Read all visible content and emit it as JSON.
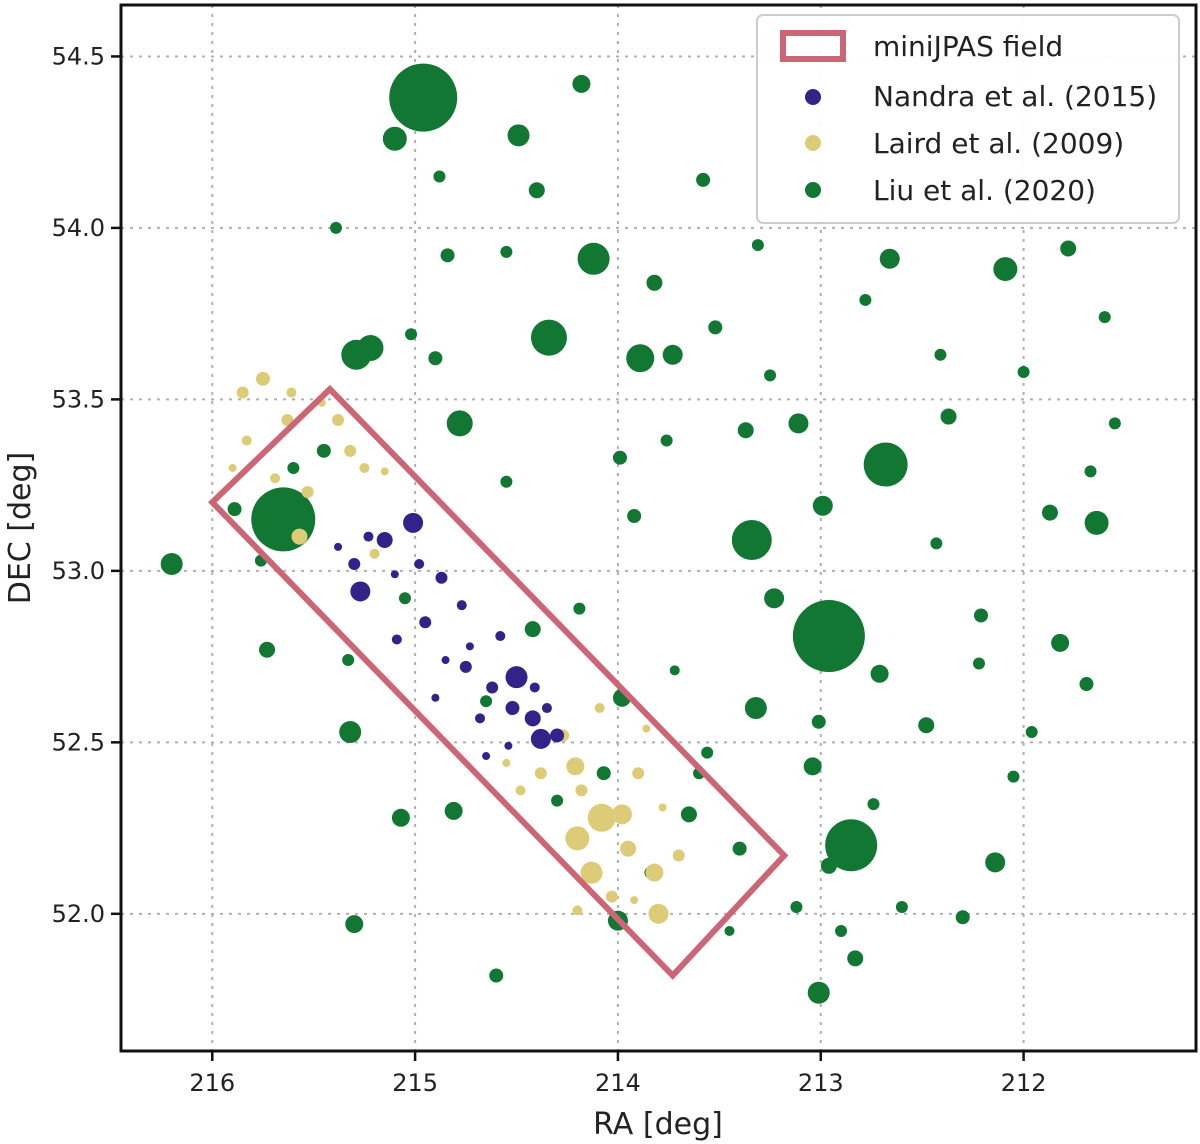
{
  "chart_data": {
    "type": "scatter",
    "xlabel": "RA [deg]",
    "ylabel": "DEC [deg]",
    "xlim": [
      216.45,
      211.15
    ],
    "ylim": [
      51.6,
      54.65
    ],
    "x_ticks": [
      "216",
      "215",
      "214",
      "213",
      "212"
    ],
    "x_tick_values": [
      216,
      215,
      214,
      213,
      212
    ],
    "y_ticks": [
      "52.0",
      "52.5",
      "53.0",
      "53.5",
      "54.0",
      "54.5"
    ],
    "y_tick_values": [
      52.0,
      52.5,
      53.0,
      53.5,
      54.0,
      54.5
    ],
    "grid": true,
    "legend_position": "top-right",
    "legend": [
      {
        "label": "miniJPAS field",
        "kind": "rect",
        "color": "#cc6677"
      },
      {
        "label": "Nandra et al. (2015)",
        "kind": "dot",
        "color": "#332288"
      },
      {
        "label": "Laird et al. (2009)",
        "kind": "dot",
        "color": "#ddcc77"
      },
      {
        "label": "Liu et al. (2020)",
        "kind": "dot",
        "color": "#117733"
      }
    ],
    "field_polygon": [
      [
        216.0,
        53.2
      ],
      [
        215.42,
        53.53
      ],
      [
        213.18,
        52.17
      ],
      [
        213.73,
        51.82
      ]
    ],
    "series": [
      {
        "name": "Liu et al. (2020)",
        "color": "#117733",
        "points": [
          [
            214.96,
            54.38,
            34
          ],
          [
            212.96,
            52.81,
            36
          ],
          [
            215.65,
            53.15,
            32
          ],
          [
            212.68,
            53.31,
            22
          ],
          [
            212.85,
            52.2,
            26
          ],
          [
            213.34,
            53.09,
            20
          ],
          [
            214.34,
            53.68,
            18
          ],
          [
            214.12,
            53.91,
            16
          ],
          [
            215.29,
            53.63,
            15
          ],
          [
            213.89,
            53.62,
            14
          ],
          [
            211.64,
            53.14,
            12
          ],
          [
            216.2,
            53.02,
            11
          ],
          [
            215.22,
            53.65,
            13
          ],
          [
            215.1,
            54.26,
            12
          ],
          [
            214.49,
            54.27,
            11
          ],
          [
            212.09,
            53.88,
            12
          ],
          [
            214.78,
            53.43,
            13
          ],
          [
            213.11,
            53.43,
            10
          ],
          [
            213.98,
            52.63,
            9
          ],
          [
            213.32,
            52.6,
            11
          ],
          [
            212.66,
            53.91,
            10
          ],
          [
            213.73,
            53.63,
            10
          ],
          [
            212.14,
            52.15,
            10
          ],
          [
            213.23,
            52.92,
            10
          ],
          [
            215.32,
            52.53,
            11
          ],
          [
            213.01,
            51.77,
            11
          ],
          [
            212.99,
            53.19,
            10
          ],
          [
            215.3,
            51.97,
            9
          ],
          [
            214.81,
            52.3,
            9
          ],
          [
            211.78,
            53.94,
            8
          ],
          [
            213.37,
            53.41,
            8
          ],
          [
            212.83,
            51.87,
            8
          ],
          [
            213.04,
            52.43,
            9
          ],
          [
            212.71,
            52.7,
            9
          ],
          [
            211.82,
            52.79,
            9
          ],
          [
            215.07,
            52.28,
            9
          ],
          [
            214.42,
            52.83,
            8
          ],
          [
            213.82,
            53.84,
            8
          ],
          [
            214.18,
            54.42,
            9
          ],
          [
            213.65,
            52.29,
            8
          ],
          [
            215.89,
            53.18,
            7
          ],
          [
            214.0,
            51.98,
            10
          ],
          [
            214.4,
            54.11,
            8
          ],
          [
            213.58,
            54.14,
            7
          ],
          [
            212.48,
            52.55,
            8
          ],
          [
            211.69,
            52.67,
            7
          ],
          [
            212.37,
            53.45,
            8
          ],
          [
            212.96,
            52.14,
            8
          ],
          [
            211.87,
            53.17,
            8
          ],
          [
            212.21,
            52.87,
            7
          ],
          [
            214.6,
            51.82,
            7
          ],
          [
            213.4,
            52.19,
            7
          ],
          [
            212.3,
            51.99,
            7
          ],
          [
            213.01,
            52.56,
            7
          ],
          [
            214.84,
            53.92,
            7
          ],
          [
            213.99,
            53.33,
            7
          ],
          [
            215.73,
            52.77,
            8
          ],
          [
            214.07,
            52.41,
            7
          ],
          [
            215.45,
            53.35,
            7
          ],
          [
            213.92,
            53.16,
            7
          ],
          [
            213.12,
            52.02,
            6
          ],
          [
            214.55,
            53.93,
            6
          ],
          [
            212.22,
            52.73,
            6
          ],
          [
            213.52,
            53.71,
            7
          ],
          [
            211.67,
            53.29,
            6
          ],
          [
            212.78,
            53.79,
            6
          ],
          [
            214.9,
            53.62,
            7
          ],
          [
            215.05,
            52.92,
            6
          ],
          [
            213.6,
            52.41,
            6
          ],
          [
            215.6,
            53.3,
            6
          ],
          [
            212.6,
            52.02,
            6
          ],
          [
            214.3,
            52.33,
            6
          ],
          [
            212.9,
            51.95,
            6
          ],
          [
            213.25,
            53.57,
            6
          ],
          [
            215.02,
            53.69,
            6
          ],
          [
            213.76,
            53.38,
            6
          ],
          [
            212.05,
            52.4,
            6
          ],
          [
            214.65,
            52.62,
            6
          ],
          [
            213.56,
            52.47,
            6
          ],
          [
            212.43,
            53.08,
            6
          ],
          [
            211.96,
            52.53,
            6
          ],
          [
            214.19,
            52.89,
            6
          ],
          [
            215.33,
            52.74,
            6
          ],
          [
            212.74,
            52.32,
            6
          ],
          [
            211.55,
            53.43,
            6
          ],
          [
            213.84,
            52.12,
            6
          ],
          [
            215.76,
            53.03,
            6
          ],
          [
            214.55,
            53.26,
            6
          ],
          [
            212.41,
            53.63,
            6
          ],
          [
            213.31,
            53.95,
            6
          ],
          [
            215.39,
            54.0,
            6
          ],
          [
            214.88,
            54.15,
            6
          ],
          [
            212.0,
            53.58,
            6
          ],
          [
            211.6,
            53.74,
            6
          ],
          [
            213.45,
            51.95,
            5
          ],
          [
            213.72,
            52.71,
            5
          ]
        ]
      },
      {
        "name": "Laird et al. (2009)",
        "color": "#ddcc77",
        "points": [
          [
            214.08,
            52.28,
            14
          ],
          [
            214.2,
            52.22,
            12
          ],
          [
            213.98,
            52.29,
            10
          ],
          [
            214.13,
            52.12,
            11
          ],
          [
            214.21,
            52.43,
            9
          ],
          [
            213.8,
            52.0,
            10
          ],
          [
            213.82,
            52.12,
            9
          ],
          [
            213.95,
            52.19,
            8
          ],
          [
            215.57,
            53.1,
            8
          ],
          [
            215.75,
            53.56,
            7
          ],
          [
            215.85,
            53.52,
            6
          ],
          [
            215.63,
            53.44,
            6
          ],
          [
            215.38,
            53.44,
            6
          ],
          [
            215.32,
            53.35,
            6
          ],
          [
            215.25,
            53.3,
            5
          ],
          [
            215.53,
            53.23,
            6
          ],
          [
            214.27,
            52.52,
            6
          ],
          [
            214.38,
            52.41,
            6
          ],
          [
            213.9,
            52.41,
            6
          ],
          [
            214.18,
            52.36,
            6
          ],
          [
            214.03,
            52.05,
            6
          ],
          [
            213.7,
            52.17,
            6
          ],
          [
            214.2,
            52.01,
            5
          ],
          [
            214.48,
            52.36,
            5
          ],
          [
            214.09,
            52.6,
            5
          ],
          [
            215.69,
            53.27,
            5
          ],
          [
            215.83,
            53.38,
            5
          ],
          [
            215.2,
            53.05,
            5
          ],
          [
            215.61,
            53.52,
            5
          ],
          [
            214.55,
            52.44,
            4
          ],
          [
            213.78,
            52.31,
            4
          ],
          [
            213.92,
            52.04,
            4
          ],
          [
            215.46,
            53.49,
            4
          ],
          [
            215.15,
            53.29,
            4
          ],
          [
            215.9,
            53.3,
            4
          ],
          [
            213.86,
            52.54,
            4
          ]
        ]
      },
      {
        "name": "Nandra et al. (2015)",
        "color": "#332288",
        "points": [
          [
            214.5,
            52.69,
            11
          ],
          [
            214.38,
            52.51,
            10
          ],
          [
            215.27,
            52.94,
            10
          ],
          [
            215.01,
            53.14,
            10
          ],
          [
            214.42,
            52.57,
            8
          ],
          [
            215.15,
            53.09,
            8
          ],
          [
            214.52,
            52.6,
            7
          ],
          [
            214.3,
            52.52,
            7
          ],
          [
            214.75,
            52.72,
            6
          ],
          [
            214.62,
            52.66,
            6
          ],
          [
            214.95,
            52.85,
            6
          ],
          [
            215.3,
            53.02,
            6
          ],
          [
            214.87,
            52.98,
            6
          ],
          [
            215.09,
            52.8,
            5
          ],
          [
            214.68,
            52.57,
            5
          ],
          [
            214.41,
            52.66,
            5
          ],
          [
            214.58,
            52.81,
            5
          ],
          [
            214.98,
            53.02,
            5
          ],
          [
            215.23,
            53.1,
            5
          ],
          [
            214.77,
            52.9,
            5
          ],
          [
            214.35,
            52.6,
            5
          ],
          [
            214.9,
            52.63,
            4
          ],
          [
            215.1,
            52.99,
            4
          ],
          [
            214.54,
            52.49,
            4
          ],
          [
            214.73,
            52.78,
            4
          ],
          [
            215.38,
            53.07,
            4
          ],
          [
            214.85,
            52.74,
            4
          ],
          [
            214.65,
            52.46,
            4
          ]
        ]
      }
    ]
  }
}
